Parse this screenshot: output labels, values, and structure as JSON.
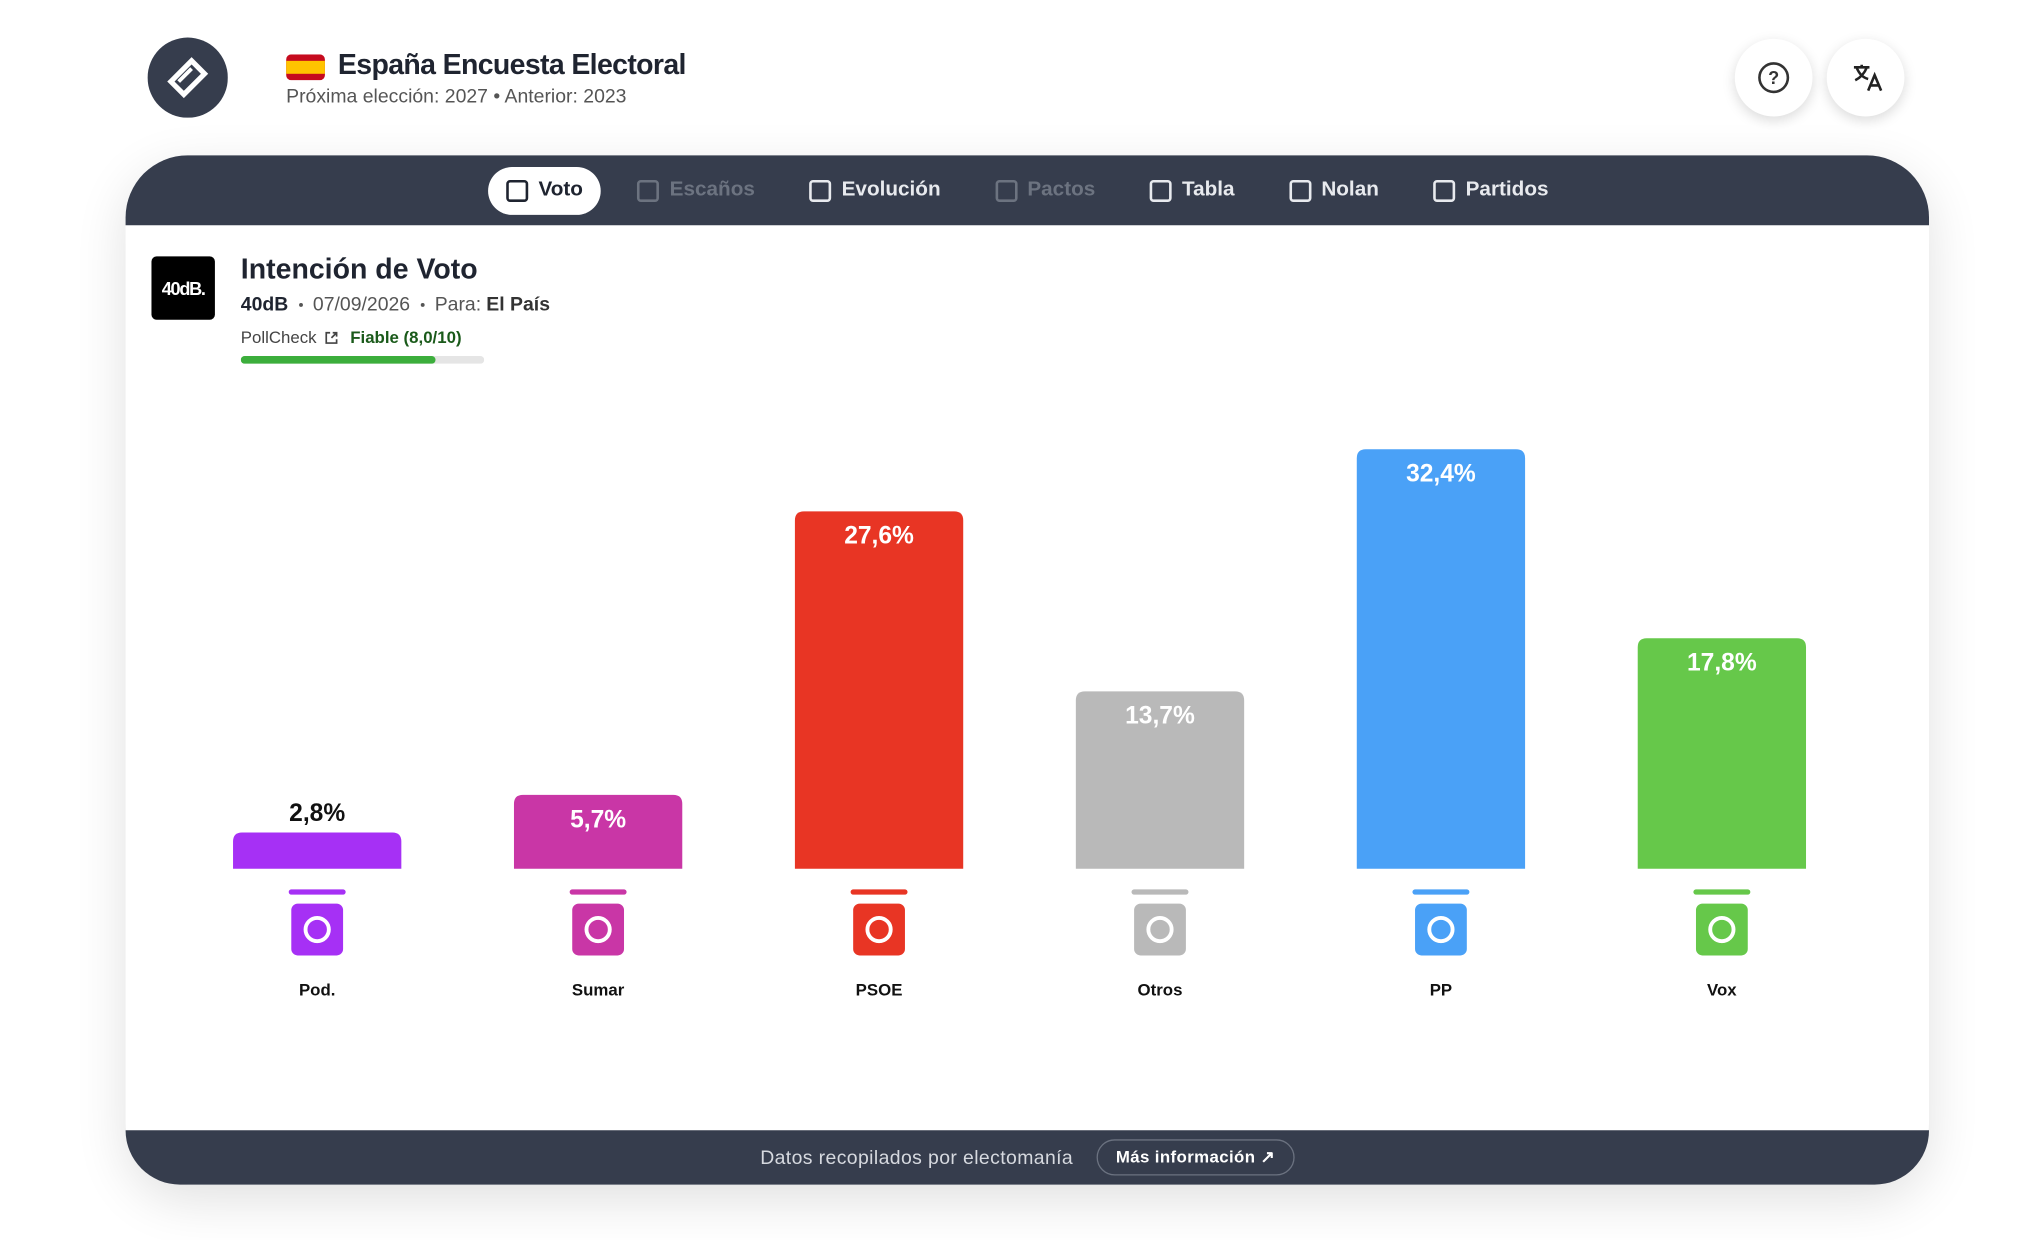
{
  "header": {
    "title": "España Encuesta Electoral",
    "subtitle": "Próxima elección: 2027 • Anterior: 2023"
  },
  "tabs": [
    "Voto",
    "Escaños",
    "Evolución",
    "Pactos",
    "Tabla",
    "Nolan",
    "Partidos"
  ],
  "poll": {
    "logo": "40dB.",
    "title": "Intención de Voto",
    "pollster": "40dB",
    "date": "07/09/2026",
    "for_label": "Para:",
    "for": "El País",
    "pollcheck": "PollCheck",
    "rating": "Fiable (8,0/10)",
    "rating_score": 8.0,
    "rating_max": 10
  },
  "chart_data": {
    "type": "bar",
    "categories": [
      "Pod.",
      "Sumar",
      "PSOE",
      "Otros",
      "PP",
      "Vox"
    ],
    "values": [
      2.8,
      5.7,
      27.6,
      13.7,
      32.4,
      17.8
    ],
    "value_labels": [
      "2,8%",
      "5,7%",
      "27,6%",
      "13,7%",
      "32,4%",
      "17,8%"
    ],
    "colors": [
      "#a630f5",
      "#c936a6",
      "#e83524",
      "#b9b9b9",
      "#4aa1f7",
      "#66c84a"
    ]
  },
  "footer": {
    "text": "Datos recopilados por electomanía",
    "button": "Más información"
  }
}
